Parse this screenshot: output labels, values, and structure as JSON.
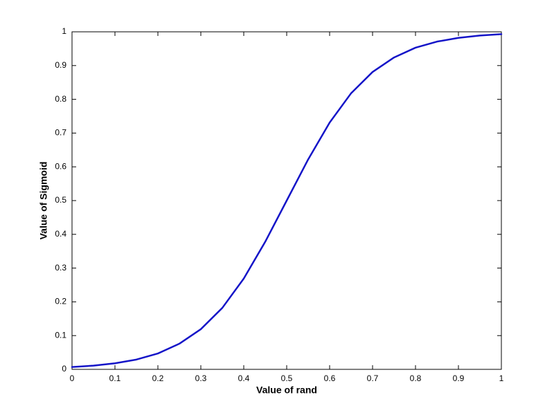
{
  "chart_data": {
    "type": "line",
    "xlabel": "Value of rand",
    "ylabel": "Value of Sigmoid",
    "x": [
      0,
      0.05,
      0.1,
      0.15,
      0.2,
      0.25,
      0.3,
      0.35,
      0.4,
      0.45,
      0.5,
      0.55,
      0.6,
      0.65,
      0.7,
      0.75,
      0.8,
      0.85,
      0.9,
      0.95,
      1
    ],
    "values": [
      0.007,
      0.011,
      0.018,
      0.029,
      0.047,
      0.076,
      0.119,
      0.182,
      0.269,
      0.378,
      0.5,
      0.622,
      0.731,
      0.818,
      0.881,
      0.924,
      0.953,
      0.971,
      0.982,
      0.989,
      0.993
    ],
    "color": "#1414c8",
    "xlim": [
      0,
      1
    ],
    "ylim": [
      0,
      1
    ],
    "xticks": [
      0,
      0.1,
      0.2,
      0.3,
      0.4,
      0.5,
      0.6,
      0.7,
      0.8,
      0.9,
      1
    ],
    "yticks": [
      0,
      0.1,
      0.2,
      0.3,
      0.4,
      0.5,
      0.6,
      0.7,
      0.8,
      0.9,
      1
    ],
    "grid": false
  }
}
